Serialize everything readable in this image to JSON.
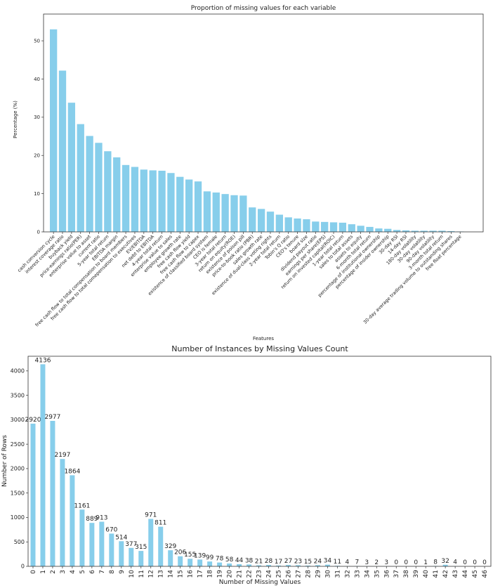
{
  "chart_data": [
    {
      "type": "bar",
      "title": "Proportion of missing values for each variable",
      "xlabel": "Features",
      "ylabel": "Percentage (%)",
      "ylim": [
        0,
        57
      ],
      "yticks": [
        0,
        10,
        20,
        30,
        40,
        50
      ],
      "grid": false,
      "bar_color": "#87ceeb",
      "categories": [
        "cash conversion cycle",
        "interest coverage ratio",
        "buyback yield",
        "price-earnings ratio(PER)",
        "enterprise value to asset",
        "current ratio",
        "5-year total return",
        "EBITDA margin",
        "free cash flow to total compensation to board members",
        "free cash flow to total comepensation to executives",
        "EV/EBITDA",
        "net debt to EBITDA",
        "4-year total return",
        "enterprise value to sales",
        "employee growth rate",
        "free cash flow yield",
        "free cash flow to capex",
        "existence of classified board system",
        "CEO is female",
        "3-year total return",
        "return on equity(ROE)",
        "existence of poison pill",
        "price-to-book ratio (PBR)",
        "sales growth rate",
        "existence of dual-class voting rights",
        "2-year total return",
        "Tobin's Q ratio",
        "CEO's tenure",
        "board size",
        "dividend payout ratio",
        "earnings per share(EPS)",
        "return on invested capital(ROIC)",
        "1-year total return",
        "sales to total assets",
        "assets to equity",
        "6-month total return",
        "percentage of institutional ownership",
        "percentage of insider ownership",
        "30-day RSI",
        "14-day RSI",
        "180-day volatility",
        "30-day volatility",
        "90-day volatility",
        "3-month total return",
        "30-day average trading volume to outstanding shares",
        "free float percentage"
      ],
      "values": [
        53.0,
        42.2,
        33.8,
        28.2,
        25.1,
        23.3,
        21.1,
        19.5,
        17.5,
        17.0,
        16.3,
        16.1,
        16.0,
        15.4,
        14.4,
        13.7,
        13.2,
        10.6,
        10.3,
        9.9,
        9.6,
        9.5,
        6.4,
        6.0,
        5.3,
        4.5,
        3.8,
        3.5,
        3.3,
        2.7,
        2.6,
        2.5,
        2.4,
        2.0,
        1.6,
        1.3,
        0.9,
        0.8,
        0.5,
        0.4,
        0.3,
        0.3,
        0.3,
        0.3,
        0.2,
        0.1
      ]
    },
    {
      "type": "bar",
      "title": "Number of Instances by Missing Values Count",
      "xlabel": "Number of Missing Values",
      "ylabel": "Number of Rows",
      "ylim": [
        0,
        4300
      ],
      "yticks": [
        0,
        500,
        1000,
        1500,
        2000,
        2500,
        3000,
        3500,
        4000
      ],
      "grid": false,
      "bar_color": "#87ceeb",
      "categories": [
        "0",
        "1",
        "2",
        "3",
        "4",
        "5",
        "6",
        "7",
        "8",
        "9",
        "10",
        "11",
        "12",
        "13",
        "14",
        "15",
        "16",
        "17",
        "18",
        "19",
        "20",
        "21",
        "22",
        "23",
        "24",
        "25",
        "26",
        "27",
        "28",
        "29",
        "30",
        "31",
        "32",
        "33",
        "34",
        "35",
        "36",
        "37",
        "38",
        "39",
        "40",
        "41",
        "42",
        "43",
        "44",
        "45",
        "46"
      ],
      "values": [
        2920,
        4136,
        2977,
        2197,
        1864,
        1161,
        889,
        913,
        670,
        514,
        377,
        315,
        971,
        811,
        329,
        206,
        155,
        139,
        99,
        78,
        58,
        44,
        38,
        21,
        28,
        17,
        27,
        23,
        15,
        24,
        34,
        11,
        4,
        7,
        3,
        2,
        3,
        0,
        0,
        0,
        1,
        8,
        32,
        4,
        0,
        0,
        0
      ],
      "data_labels": true
    }
  ]
}
